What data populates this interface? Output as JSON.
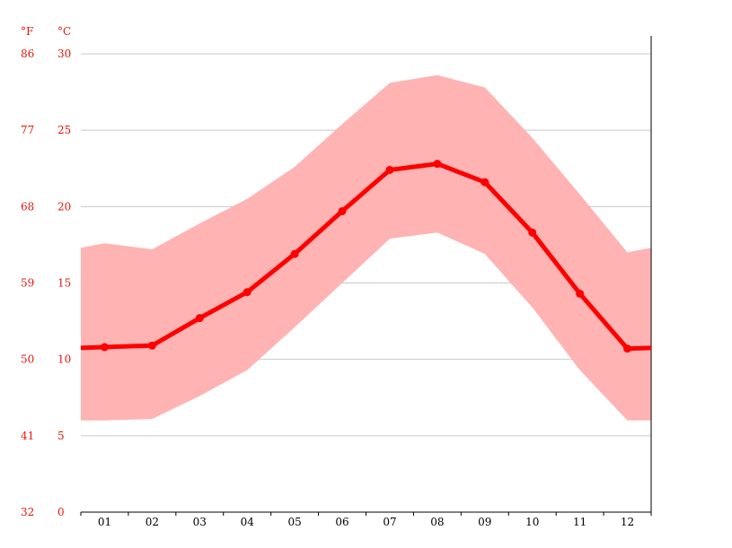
{
  "chart_data": {
    "type": "line",
    "categories": [
      "01",
      "02",
      "03",
      "04",
      "05",
      "06",
      "07",
      "08",
      "09",
      "10",
      "11",
      "12"
    ],
    "units": {
      "fahrenheit": "°F",
      "celsius": "°C"
    },
    "y_ticks_celsius": [
      0,
      5,
      10,
      15,
      20,
      25,
      30
    ],
    "y_ticks_fahrenheit": [
      32,
      41,
      50,
      59,
      68,
      77,
      86
    ],
    "ylim": [
      0,
      30
    ],
    "grid": true,
    "series": [
      {
        "role": "average",
        "values": [
          10.8,
          10.9,
          12.7,
          14.4,
          16.9,
          19.7,
          22.4,
          22.8,
          21.6,
          18.3,
          14.3,
          10.7
        ],
        "color": "#ff0000"
      },
      {
        "role": "max",
        "values": [
          17.6,
          17.2,
          18.9,
          20.5,
          22.6,
          25.4,
          28.1,
          28.6,
          27.8,
          24.5,
          20.8,
          17.0
        ],
        "color": "#ffb3b3"
      },
      {
        "role": "min",
        "values": [
          6.0,
          6.1,
          7.6,
          9.3,
          12.1,
          15.0,
          17.9,
          18.3,
          16.9,
          13.4,
          9.3,
          6.0
        ],
        "color": "#ffb3b3"
      }
    ],
    "colors": {
      "ticks": "#e8160c",
      "average_line": "#ff0000",
      "range_band": "#ffb3b3",
      "grid": "#c8c8c8"
    }
  }
}
